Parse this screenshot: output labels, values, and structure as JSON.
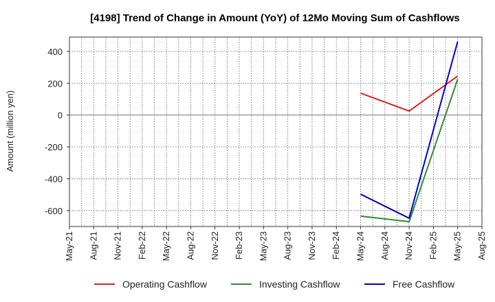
{
  "chart_data": {
    "type": "line",
    "title": "[4198]  Trend of Change in Amount (YoY) of 12Mo Moving Sum of Cashflows",
    "ylabel": "Amount (million yen)",
    "xlabel": "",
    "ylim": [
      -700,
      490
    ],
    "yticks": [
      400,
      200,
      0,
      -200,
      -400,
      -600
    ],
    "x_ticks": [
      "May-21",
      "Aug-21",
      "Nov-21",
      "Feb-22",
      "May-22",
      "Aug-22",
      "Nov-22",
      "Feb-23",
      "May-23",
      "Aug-23",
      "Nov-23",
      "Feb-24",
      "May-24",
      "Aug-24",
      "Nov-24",
      "Feb-25",
      "May-25",
      "Aug-25"
    ],
    "grid": true,
    "series": [
      {
        "name": "Operating Cashflow",
        "color": "#e41a1c",
        "x": [
          "May-24",
          "Nov-24",
          "May-25"
        ],
        "values": [
          138,
          25,
          245
        ]
      },
      {
        "name": "Investing Cashflow",
        "color": "#2e8b2e",
        "x": [
          "May-24",
          "Nov-24",
          "May-25"
        ],
        "values": [
          -635,
          -670,
          225
        ]
      },
      {
        "name": "Free Cashflow",
        "color": "#0000cd",
        "x": [
          "May-24",
          "Nov-24",
          "May-25"
        ],
        "values": [
          -497,
          -648,
          462
        ]
      }
    ],
    "legend_position": "bottom"
  }
}
